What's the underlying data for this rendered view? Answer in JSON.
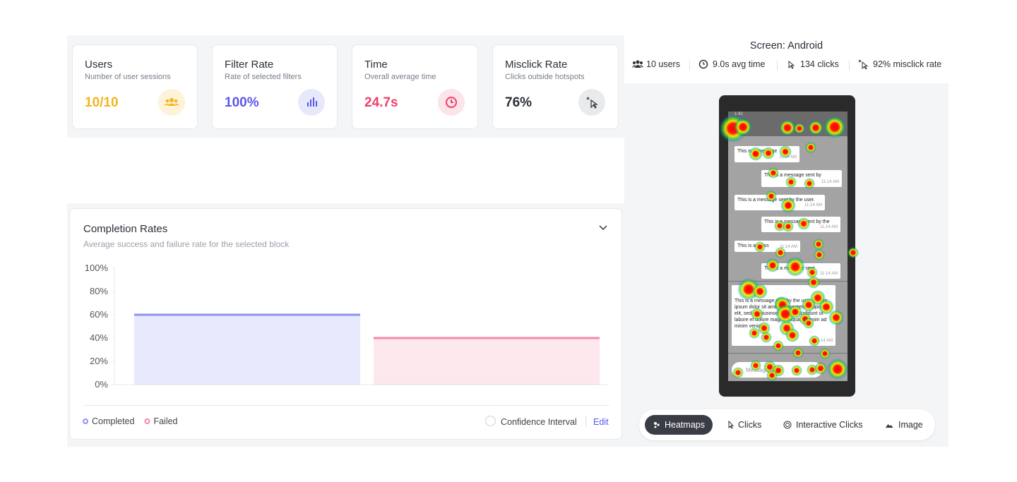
{
  "stats": [
    {
      "title": "Users",
      "subtitle": "Number of user sessions",
      "value": "10/10"
    },
    {
      "title": "Filter Rate",
      "subtitle": "Rate of selected filters",
      "value": "100%"
    },
    {
      "title": "Time",
      "subtitle": "Overall average time",
      "value": "24.7s"
    },
    {
      "title": "Misclick Rate",
      "subtitle": "Clicks outside hotspots",
      "value": "76%"
    }
  ],
  "chart_data": {
    "type": "bar",
    "title": "Completion Rates",
    "subtitle": "Average success and failure rate for the selected block",
    "series": [
      {
        "name": "Completed",
        "color": "#8e92f4",
        "values": [
          60
        ]
      },
      {
        "name": "Failed",
        "color": "#f38aa6",
        "values": [
          40
        ]
      }
    ],
    "ylim": [
      0,
      100
    ],
    "yticks": [
      {
        "value": 0,
        "label": "0%"
      },
      {
        "value": 20,
        "label": "20%"
      },
      {
        "value": 40,
        "label": "40%"
      },
      {
        "value": 60,
        "label": "60%"
      },
      {
        "value": 80,
        "label": "80%"
      },
      {
        "value": 100,
        "label": "100%"
      }
    ],
    "grid": false,
    "legend": "bottom-left"
  },
  "chart_footer": {
    "confidence": "Confidence Interval",
    "edit": "Edit"
  },
  "screen": {
    "title": "Screen: Android",
    "stats": [
      "10 users",
      "9.0s avg time",
      "134 clicks",
      "92% misclick rate"
    ],
    "status_time": "1:42",
    "messages": [
      {
        "text": "This is a message",
        "time": "11:14 AM"
      },
      {
        "text": "This is a message sent by",
        "time": "11:14 AM"
      },
      {
        "text": "This is a message sent by the user.",
        "time": "11:14 AM"
      },
      {
        "text": "This is a message sent by the",
        "time": "11:14 AM"
      },
      {
        "text": "This is a mess",
        "time": "11:14 AM"
      },
      {
        "text": "This is a message sent",
        "time": "11:14 AM"
      },
      {
        "text": "This is a message sent by the user. Lorem ipsum dolor sit amet, consectetur adipiscing elit, sed do eiusmod tempor incididunt ut labore et dolore magna aliqua. Ut enim ad minim veniam,",
        "time": "11:14 AM"
      }
    ],
    "input_placeholder": "Message",
    "tabs": [
      "Heatmaps",
      "Clicks",
      "Interactive Clicks",
      "Image"
    ]
  }
}
